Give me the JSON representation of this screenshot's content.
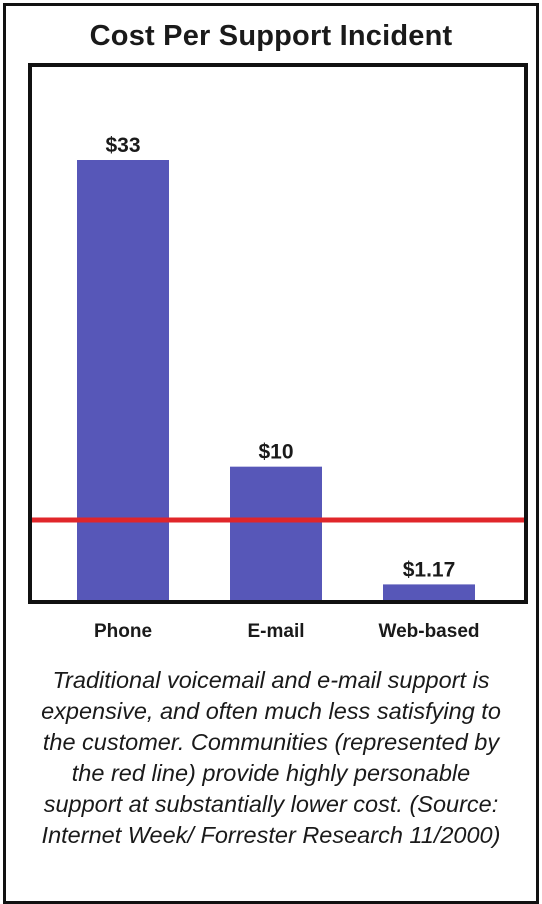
{
  "chart_data": {
    "type": "bar",
    "title": "Cost Per Support Incident",
    "categories": [
      "Phone",
      "E-mail",
      "Web-based"
    ],
    "values": [
      33,
      10,
      1.17
    ],
    "value_labels": [
      "$33",
      "$10",
      "$1.17"
    ],
    "ylim": [
      0,
      40
    ],
    "reference_line": 6,
    "grid": false,
    "xlabel": "",
    "ylabel": "",
    "colors": {
      "bar": "#5757b8",
      "reference_line": "#e0262a",
      "frame": "#111111"
    }
  },
  "caption": "Traditional voicemail and e-mail support is expensive, and often much less satisfying to the customer.  Communities (represented by the red line) provide highly personable support at substantially lower cost. (Source:  Internet Week/ Forrester Research 11/2000)"
}
